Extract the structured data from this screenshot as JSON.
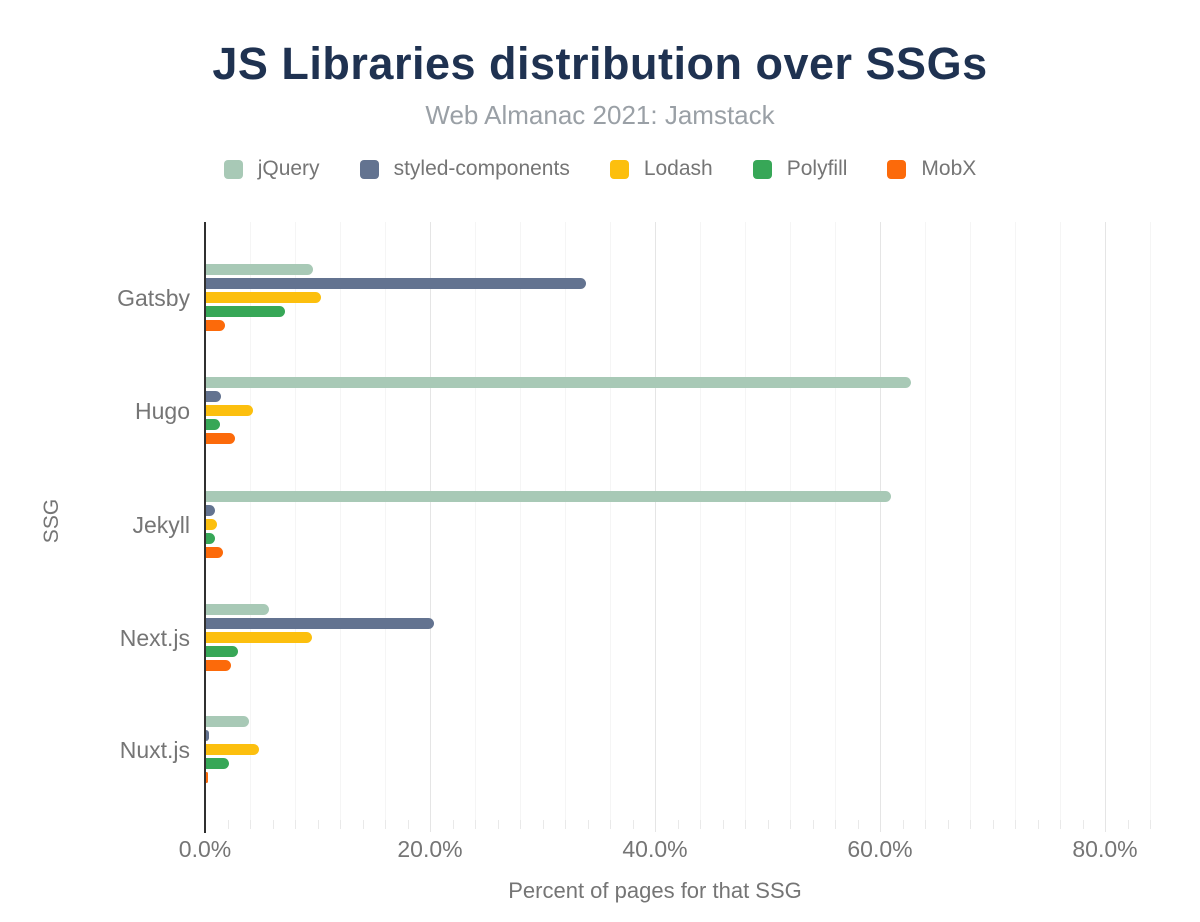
{
  "title": "JS Libraries distribution over SSGs",
  "subtitle": "Web Almanac 2021: Jamstack",
  "colors": {
    "title_text": "#1F3251",
    "subtitle_text": "#9AA0A6",
    "axis_text": "#757575",
    "axis_line": "#303030",
    "grid_major": "#E5E5E5",
    "grid_minor": "#F5F5F5"
  },
  "chart_data": {
    "type": "bar",
    "orientation": "horizontal",
    "title": "JS Libraries distribution over SSGs",
    "subtitle": "Web Almanac 2021: Jamstack",
    "xlabel": "Percent of pages for that SSG",
    "ylabel": "SSG",
    "legend_position": "top",
    "grid": "minor every 4%, major every 20%, ticks every 2%",
    "xlim": [
      0,
      85
    ],
    "categories": [
      "Gatsby",
      "Hugo",
      "Jekyll",
      "Next.js",
      "Nuxt.js"
    ],
    "series": [
      {
        "name": "jQuery",
        "color": "#A8C9B6",
        "values": [
          9.5,
          62.7,
          60.9,
          5.6,
          3.8
        ]
      },
      {
        "name": "styled-components",
        "color": "#637390",
        "values": [
          33.8,
          1.3,
          0.8,
          20.3,
          0.3
        ]
      },
      {
        "name": "Lodash",
        "color": "#FCBF0E",
        "values": [
          10.2,
          4.2,
          1.0,
          9.4,
          4.7
        ]
      },
      {
        "name": "Polyfill",
        "color": "#37A757",
        "values": [
          7.0,
          1.2,
          0.8,
          2.8,
          2.0
        ]
      },
      {
        "name": "MobX",
        "color": "#FC6A0A",
        "values": [
          1.7,
          2.6,
          1.5,
          2.2,
          0.1
        ]
      }
    ],
    "x_ticks": [
      {
        "value": 0,
        "label": "0.0%"
      },
      {
        "value": 20,
        "label": "20.0%"
      },
      {
        "value": 40,
        "label": "40.0%"
      },
      {
        "value": 60,
        "label": "60.0%"
      },
      {
        "value": 80,
        "label": "80.0%"
      }
    ]
  }
}
